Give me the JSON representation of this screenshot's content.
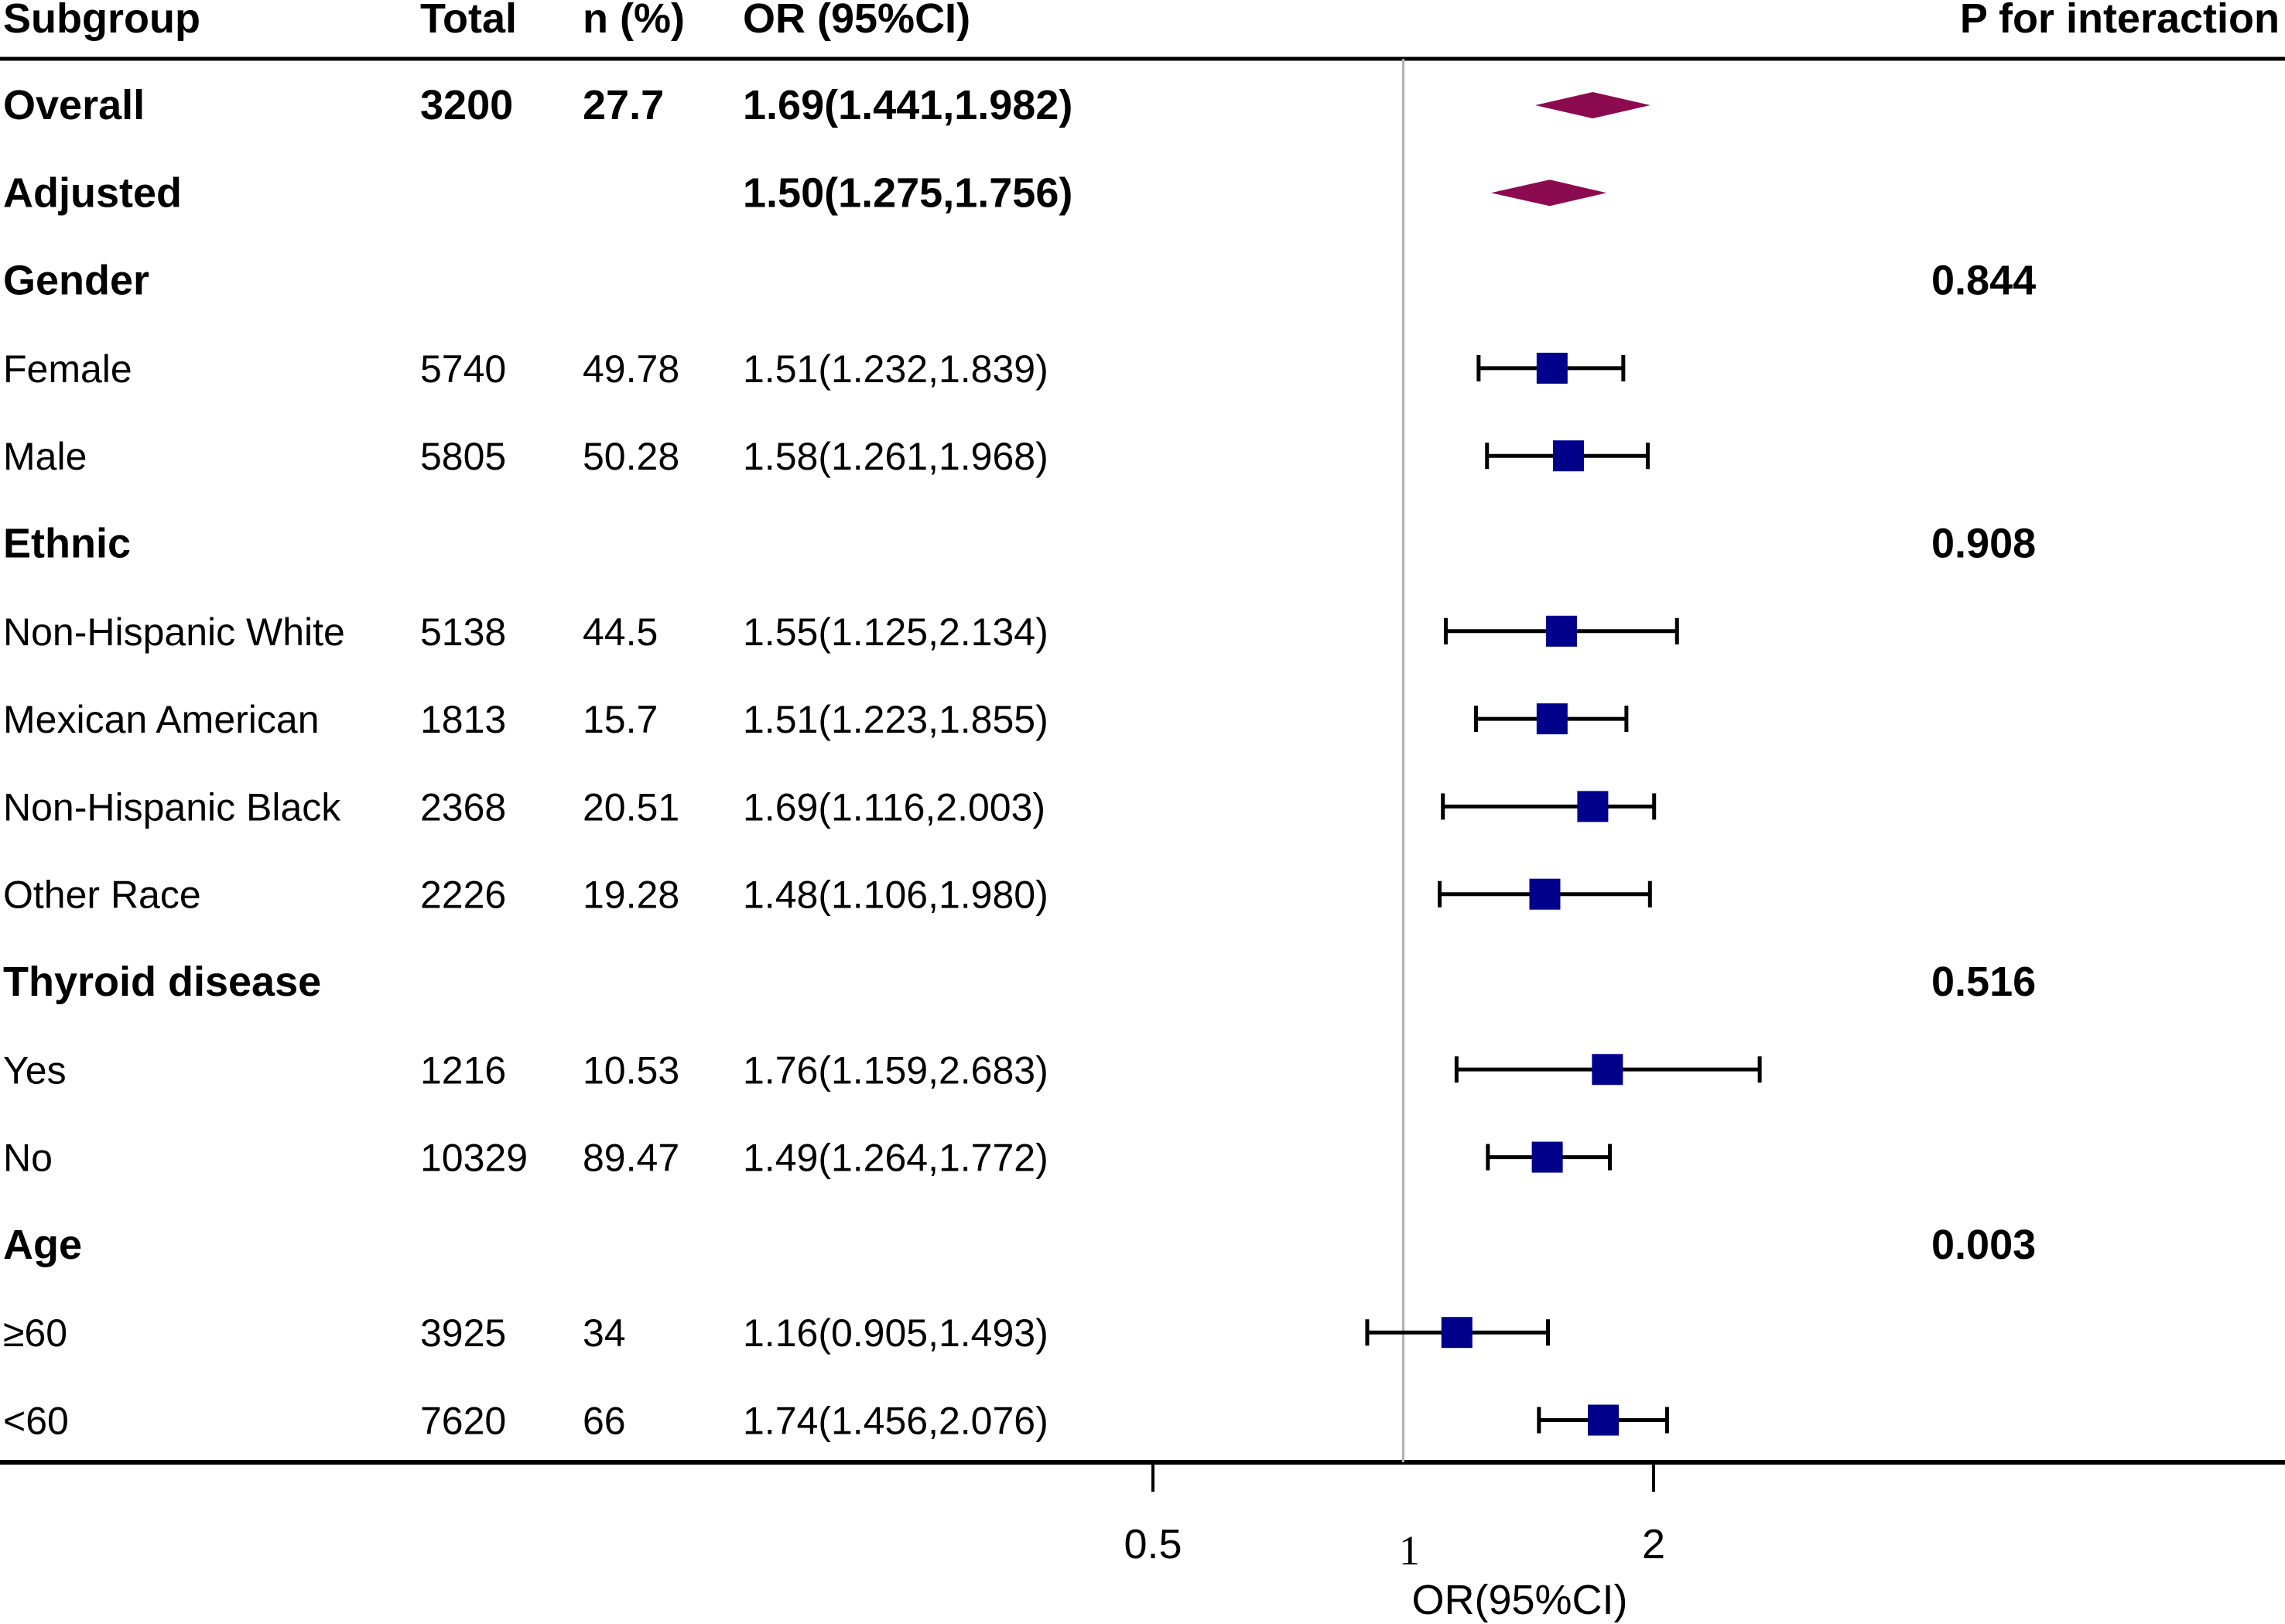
{
  "colors": {
    "summary": "#8b0a50",
    "point": "#00008b",
    "ci_line": "#000000",
    "ref_line": "#b0b0b0",
    "text": "#000000"
  },
  "chart_data": {
    "type": "forest",
    "x_scale": "log2",
    "xlim": [
      0.5,
      2
    ],
    "xticks": [
      "0.5",
      "1",
      "2"
    ],
    "reference_value": 1,
    "xlabel": "OR(95%CI)",
    "headers": {
      "subgroup": "Subgroup",
      "total": "Total",
      "n_pct": "n (%)",
      "or_ci": "OR (95%CI)",
      "p_interaction": "P for interaction"
    },
    "rows": [
      {
        "label": "Overall",
        "kind": "summary",
        "bold": true,
        "total": "3200",
        "n_pct": "27.7",
        "or_text": "1.69(1.441,1.982)",
        "or": 1.69,
        "lo": 1.441,
        "hi": 1.982,
        "p": ""
      },
      {
        "label": "Adjusted",
        "kind": "summary",
        "bold": true,
        "total": "",
        "n_pct": "",
        "or_text": "1.50(1.275,1.756)",
        "or": 1.5,
        "lo": 1.275,
        "hi": 1.756,
        "p": ""
      },
      {
        "label": "Gender",
        "kind": "group",
        "bold": true,
        "total": "",
        "n_pct": "",
        "or_text": "",
        "p": "0.844"
      },
      {
        "label": "Female",
        "kind": "point",
        "bold": false,
        "total": "5740",
        "n_pct": "49.78",
        "or_text": "1.51(1.232,1.839)",
        "or": 1.51,
        "lo": 1.232,
        "hi": 1.839,
        "p": ""
      },
      {
        "label": "Male",
        "kind": "point",
        "bold": false,
        "total": "5805",
        "n_pct": "50.28",
        "or_text": "1.58(1.261,1.968)",
        "or": 1.58,
        "lo": 1.261,
        "hi": 1.968,
        "p": ""
      },
      {
        "label": "Ethnic",
        "kind": "group",
        "bold": true,
        "total": "",
        "n_pct": "",
        "or_text": "",
        "p": "0.908"
      },
      {
        "label": "Non-Hispanic White",
        "kind": "point",
        "bold": false,
        "total": "5138",
        "n_pct": "44.5",
        "or_text": "1.55(1.125,2.134)",
        "or": 1.55,
        "lo": 1.125,
        "hi": 2.134,
        "p": ""
      },
      {
        "label": "Mexican American",
        "kind": "point",
        "bold": false,
        "total": "1813",
        "n_pct": "15.7",
        "or_text": "1.51(1.223,1.855)",
        "or": 1.51,
        "lo": 1.223,
        "hi": 1.855,
        "p": ""
      },
      {
        "label": "Non-Hispanic Black",
        "kind": "point",
        "bold": false,
        "total": "2368",
        "n_pct": "20.51",
        "or_text": "1.69(1.116,2.003)",
        "or": 1.69,
        "lo": 1.116,
        "hi": 2.003,
        "p": ""
      },
      {
        "label": "Other Race",
        "kind": "point",
        "bold": false,
        "total": "2226",
        "n_pct": "19.28",
        "or_text": "1.48(1.106,1.980)",
        "or": 1.48,
        "lo": 1.106,
        "hi": 1.98,
        "p": ""
      },
      {
        "label": "Thyroid disease",
        "kind": "group",
        "bold": true,
        "total": "",
        "n_pct": "",
        "or_text": "",
        "p": "0.516"
      },
      {
        "label": "Yes",
        "kind": "point",
        "bold": false,
        "total": "1216",
        "n_pct": "10.53",
        "or_text": "1.76(1.159,2.683)",
        "or": 1.76,
        "lo": 1.159,
        "hi": 2.683,
        "p": ""
      },
      {
        "label": "No",
        "kind": "point",
        "bold": false,
        "total": "10329",
        "n_pct": "89.47",
        "or_text": "1.49(1.264,1.772)",
        "or": 1.49,
        "lo": 1.264,
        "hi": 1.772,
        "p": ""
      },
      {
        "label": "Age",
        "kind": "group",
        "bold": true,
        "total": "",
        "n_pct": "",
        "or_text": "",
        "p": "0.003"
      },
      {
        "label": "≥60",
        "kind": "point",
        "bold": false,
        "total": "3925",
        "n_pct": "34",
        "or_text": "1.16(0.905,1.493)",
        "or": 1.16,
        "lo": 0.905,
        "hi": 1.493,
        "p": ""
      },
      {
        "label": "<60",
        "kind": "point",
        "bold": false,
        "total": "7620",
        "n_pct": "66",
        "or_text": "1.74(1.456,2.076)",
        "or": 1.74,
        "lo": 1.456,
        "hi": 2.076,
        "p": ""
      }
    ]
  }
}
